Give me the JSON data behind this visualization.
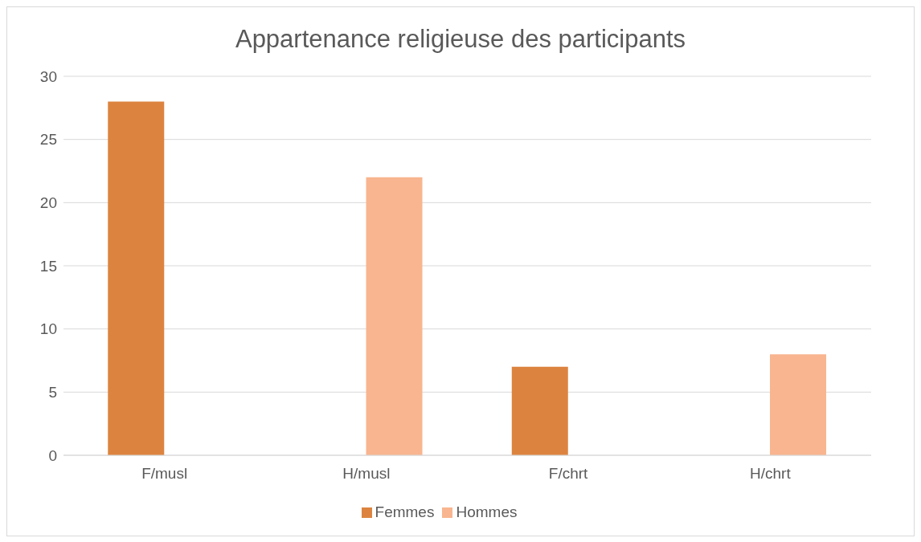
{
  "chart_data": {
    "type": "bar",
    "title": "Appartenance religieuse des participants",
    "categories": [
      "F/musl",
      "H/musl",
      "F/chrt",
      "H/chrt"
    ],
    "series": [
      {
        "name": "Femmes",
        "color": "#dc843f",
        "values": [
          28,
          null,
          7,
          null
        ]
      },
      {
        "name": "Hommes",
        "color": "#f8b58f",
        "values": [
          null,
          22,
          null,
          8
        ]
      }
    ],
    "ylim": [
      0,
      30
    ],
    "yticks": [
      0,
      5,
      10,
      15,
      20,
      25,
      30
    ],
    "grid": "y",
    "legend": "bottom"
  }
}
